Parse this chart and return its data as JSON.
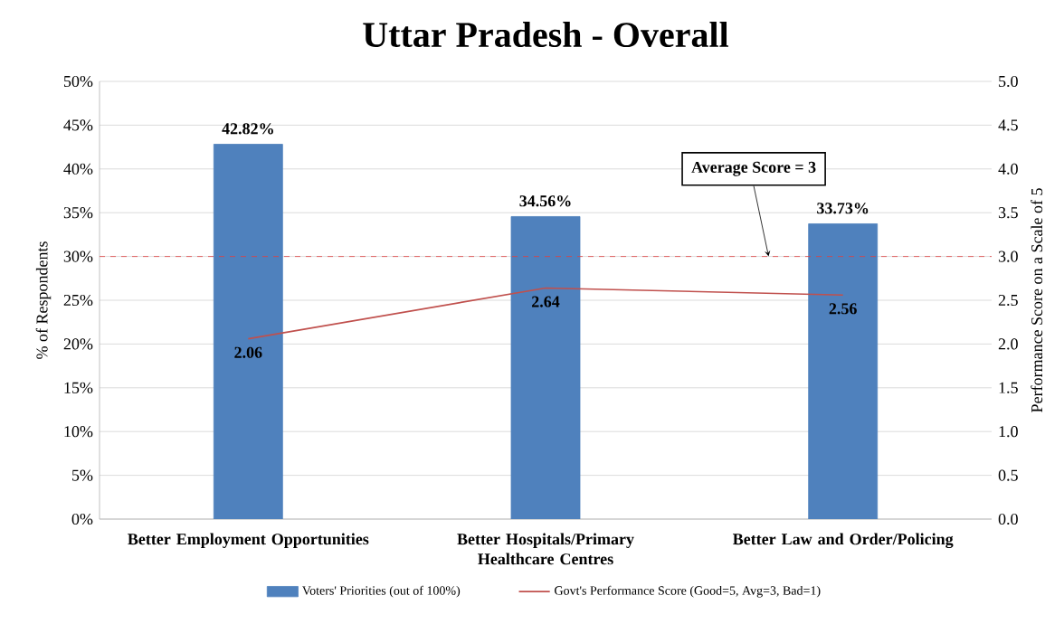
{
  "chart_data": {
    "type": "bar",
    "title": "Uttar Pradesh - Overall",
    "categories": [
      "Better Employment Opportunities",
      "Better Hospitals/Primary Healthcare Centres",
      "Better Law and Order/Policing"
    ],
    "series": [
      {
        "name": "Voters' Priorities (out of 100%)",
        "color": "#4f81bd",
        "values": [
          42.82,
          34.56,
          33.73
        ],
        "value_labels": [
          "42.82%",
          "34.56%",
          "33.73%"
        ]
      },
      {
        "name": "Govt's Performance Score (Good=5, Avg=3, Bad=1)",
        "type": "line",
        "axis": "y2",
        "color": "#c0504d",
        "values": [
          2.06,
          2.64,
          2.56
        ],
        "value_labels": [
          "2.06",
          "2.64",
          "2.56"
        ]
      }
    ],
    "ylabel": "% of Respondents",
    "y2label": "Performance Score on a Scale of 5",
    "ylim": [
      0,
      50
    ],
    "yticks": [
      {
        "value": 0,
        "label": "0%"
      },
      {
        "value": 5,
        "label": "5%"
      },
      {
        "value": 10,
        "label": "10%"
      },
      {
        "value": 15,
        "label": "15%"
      },
      {
        "value": 20,
        "label": "20%"
      },
      {
        "value": 25,
        "label": "25%"
      },
      {
        "value": 30,
        "label": "30%"
      },
      {
        "value": 35,
        "label": "35%"
      },
      {
        "value": 40,
        "label": "40%"
      },
      {
        "value": 45,
        "label": "45%"
      },
      {
        "value": 50,
        "label": "50%"
      }
    ],
    "y2lim": [
      0,
      5
    ],
    "y2ticks": [
      {
        "value": 0,
        "label": "0.0"
      },
      {
        "value": 0.5,
        "label": "0.5"
      },
      {
        "value": 1,
        "label": "1.0"
      },
      {
        "value": 1.5,
        "label": "1.5"
      },
      {
        "value": 2,
        "label": "2.0"
      },
      {
        "value": 2.5,
        "label": "2.5"
      },
      {
        "value": 3,
        "label": "3.0"
      },
      {
        "value": 3.5,
        "label": "3.5"
      },
      {
        "value": 4,
        "label": "4.0"
      },
      {
        "value": 4.5,
        "label": "4.5"
      },
      {
        "value": 5,
        "label": "5.0"
      }
    ],
    "ref_lines": [
      {
        "axis": "y2",
        "value": 3,
        "label": "Average Score = 3",
        "color": "#e04040",
        "line_style": "dashed"
      }
    ],
    "grid": "y",
    "legend": "bottom"
  }
}
